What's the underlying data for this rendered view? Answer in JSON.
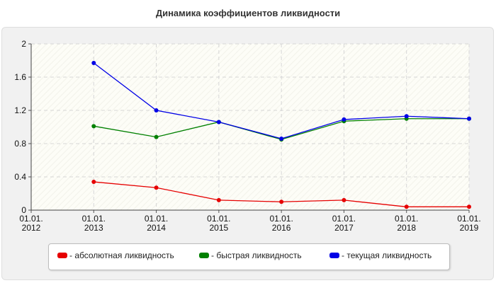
{
  "chart_data": {
    "type": "line",
    "title": "Динамика коэффициентов ликвидности",
    "categories": [
      "01.01.\n2012",
      "01.01.\n2013",
      "01.01.\n2014",
      "01.01.\n2015",
      "01.01.\n2016",
      "01.01.\n2017",
      "01.01.\n2018",
      "01.01.\n2019"
    ],
    "y_ticks": [
      "0",
      "0.4",
      "0.8",
      "1.2",
      "1.6",
      "2"
    ],
    "ylim": [
      0,
      2
    ],
    "grid": true,
    "legend_position": "bottom",
    "series": [
      {
        "name": "- абсолютная ликвидность",
        "color": "#e60000",
        "values": [
          null,
          0.34,
          0.27,
          0.12,
          0.1,
          0.12,
          0.04,
          0.04
        ]
      },
      {
        "name": "- быстрая ликвидность",
        "color": "#008000",
        "values": [
          null,
          1.01,
          0.88,
          1.06,
          0.85,
          1.07,
          1.1,
          1.1
        ]
      },
      {
        "name": "- текущая ликвидность",
        "color": "#0000e6",
        "values": [
          null,
          1.77,
          1.2,
          1.06,
          0.86,
          1.09,
          1.13,
          1.1
        ]
      }
    ]
  }
}
